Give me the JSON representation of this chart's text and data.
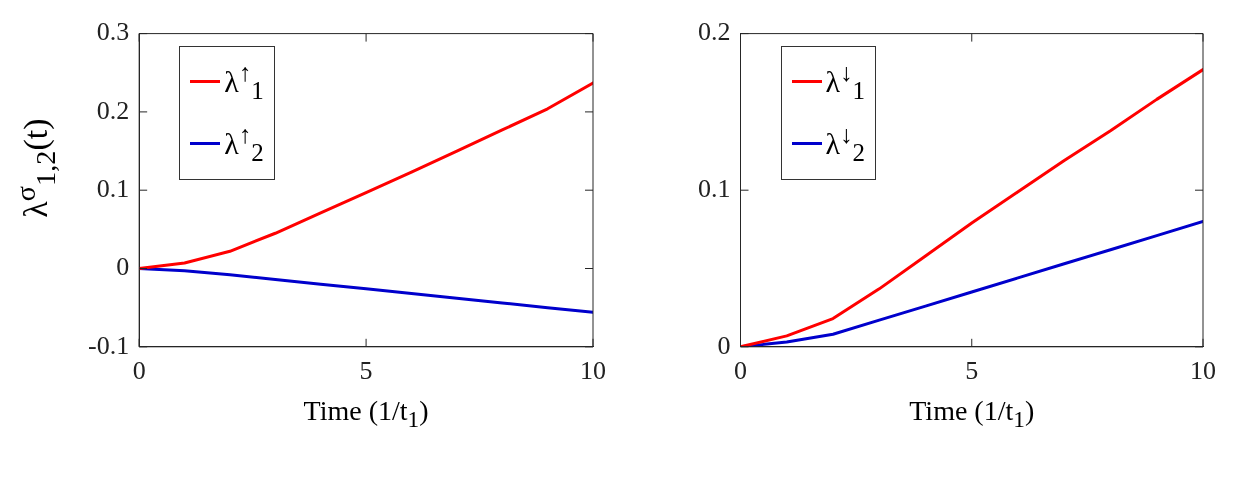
{
  "chart_data": [
    {
      "type": "line",
      "ylabel": "λ$^{σ}$$_{1,2}$(t)",
      "xlabel": "Time (1/t$_{1}$)",
      "xlim": [
        0,
        10
      ],
      "ylim": [
        -0.1,
        0.3
      ],
      "xticks": [
        0,
        5,
        10
      ],
      "yticks": [
        -0.1,
        0,
        0.1,
        0.2,
        0.3
      ],
      "legend": "top left",
      "marker": "none",
      "line_style": "solid",
      "x": [
        0,
        1,
        2,
        3,
        4,
        5,
        6,
        7,
        8,
        9,
        10
      ],
      "series": [
        {
          "name": "λ$^{↑}$$_{1}$",
          "color": "#ff0000",
          "values": [
            0,
            0.007,
            0.022,
            0.045,
            0.071,
            0.097,
            0.123,
            0.15,
            0.177,
            0.204,
            0.237
          ]
        },
        {
          "name": "λ$^{↑}$$_{2}$",
          "color": "#0000cc",
          "values": [
            0,
            -0.003,
            -0.008,
            -0.014,
            -0.02,
            -0.026,
            -0.032,
            -0.038,
            -0.044,
            -0.05,
            -0.056
          ]
        }
      ]
    },
    {
      "type": "line",
      "xlabel": "Time (1/t$_{1}$)",
      "xlim": [
        0,
        10
      ],
      "ylim": [
        0,
        0.2
      ],
      "xticks": [
        0,
        5,
        10
      ],
      "yticks": [
        0,
        0.1,
        0.2
      ],
      "legend": "top left",
      "marker": "none",
      "line_style": "solid",
      "x": [
        0,
        1,
        2,
        3,
        4,
        5,
        6,
        7,
        8,
        9,
        10
      ],
      "series": [
        {
          "name": "λ$^{↓}$$_{1}$",
          "color": "#ff0000",
          "values": [
            0,
            0.007,
            0.018,
            0.037,
            0.058,
            0.079,
            0.099,
            0.119,
            0.138,
            0.158,
            0.177
          ]
        },
        {
          "name": "λ$^{↓}$$_{2}$",
          "color": "#0000cc",
          "values": [
            0,
            0.003,
            0.008,
            0.017,
            0.026,
            0.035,
            0.044,
            0.053,
            0.062,
            0.071,
            0.08
          ]
        }
      ]
    }
  ]
}
